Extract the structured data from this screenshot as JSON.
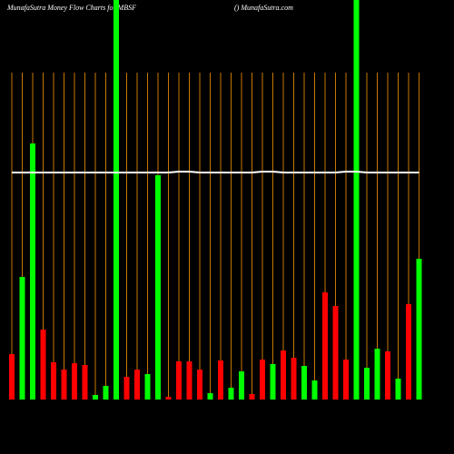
{
  "chart_data": {
    "type": "bar",
    "title": "MunafaSutra  Money Flow  Charts for MBSF",
    "subtitle": "() MunafaSutra.com",
    "categories": [
      null,
      null,
      null,
      null,
      null,
      null,
      null,
      null,
      null,
      null,
      null,
      null,
      null,
      null,
      null,
      null,
      null,
      null,
      null,
      null,
      null,
      null,
      null,
      null,
      null,
      null,
      null,
      null,
      null,
      null,
      null,
      null,
      null,
      null,
      null,
      null,
      null,
      null,
      null,
      null
    ],
    "values": [
      50,
      135,
      282,
      77,
      41,
      33,
      40,
      38,
      5,
      15,
      440,
      25,
      33,
      28,
      247,
      3,
      42,
      42,
      33,
      7,
      43,
      13,
      31,
      6,
      44,
      39,
      54,
      46,
      37,
      21,
      118,
      103,
      44,
      440,
      35,
      56,
      53,
      23,
      105,
      155
    ],
    "colors": [
      "#ff0000",
      "#00ff00",
      "#00ff00",
      "#ff0000",
      "#ff0000",
      "#ff0000",
      "#ff0000",
      "#ff0000",
      "#00ff00",
      "#00ff00",
      "#00ff00",
      "#ff0000",
      "#ff0000",
      "#00ff00",
      "#00ff00",
      "#ff0000",
      "#ff0000",
      "#ff0000",
      "#ff0000",
      "#00ff00",
      "#ff0000",
      "#00ff00",
      "#00ff00",
      "#ff0000",
      "#ff0000",
      "#00ff00",
      "#ff0000",
      "#ff0000",
      "#00ff00",
      "#00ff00",
      "#ff0000",
      "#ff0000",
      "#ff0000",
      "#00ff00",
      "#00ff00",
      "#00ff00",
      "#ff0000",
      "#00ff00",
      "#ff0000",
      "#00ff00"
    ],
    "line_values": [
      250,
      250,
      250,
      250,
      250,
      250,
      250,
      250,
      250,
      250,
      250,
      250,
      250,
      250,
      250,
      250,
      251,
      251,
      250,
      250,
      250,
      250,
      250,
      250,
      251,
      251,
      250,
      250,
      250,
      250,
      250,
      250,
      251,
      251,
      250,
      250,
      250,
      250,
      250,
      250
    ],
    "line_color": "#ffffff",
    "ylim": [
      0,
      440
    ]
  }
}
